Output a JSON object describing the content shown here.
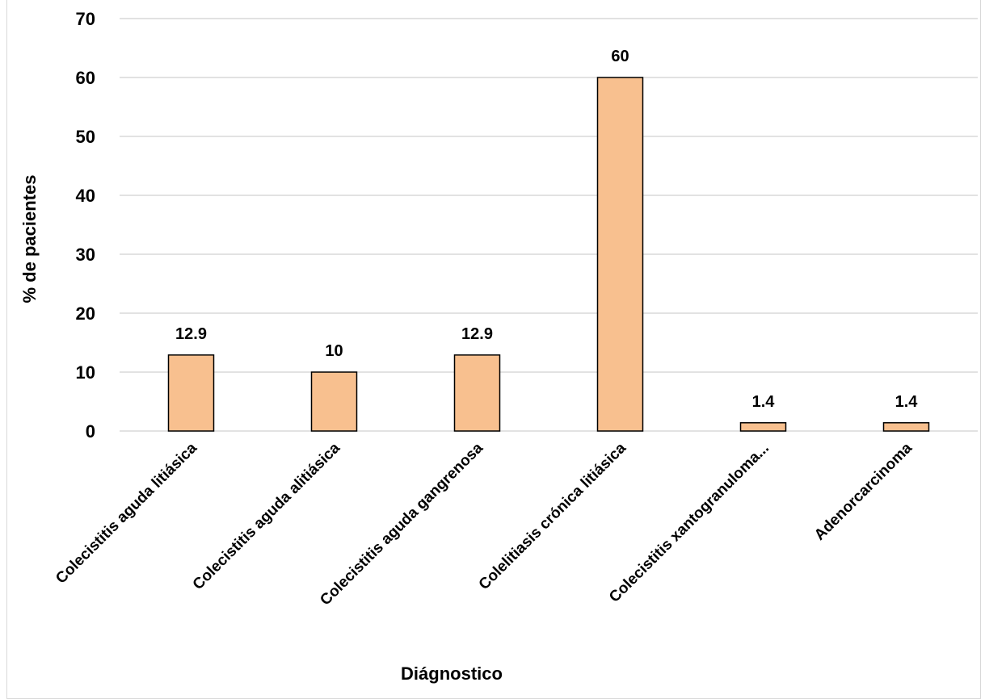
{
  "chart_data": {
    "type": "bar",
    "title": "",
    "xlabel": "Diágnostico",
    "ylabel": "% de pacientes",
    "ylim": [
      0,
      70
    ],
    "yticks": [
      0,
      10,
      20,
      30,
      40,
      50,
      60,
      70
    ],
    "grid": true,
    "legend": "none",
    "bar_color": "#F8C08F",
    "bar_stroke": "#000000",
    "categories": [
      "Colecistitis aguda litiásica",
      "Colecistitis aguda alitiásica",
      "Colecistitis aguda gangrenosa",
      "Colelitiasis crónica litiásica",
      "Colecistitis xantogranuloma...",
      "Adenorcarcinoma"
    ],
    "values": [
      12.9,
      10,
      12.9,
      60,
      1.4,
      1.4
    ],
    "data_labels": [
      "12.9",
      "10",
      "12.9",
      "60",
      "1.4",
      "1.4"
    ]
  }
}
